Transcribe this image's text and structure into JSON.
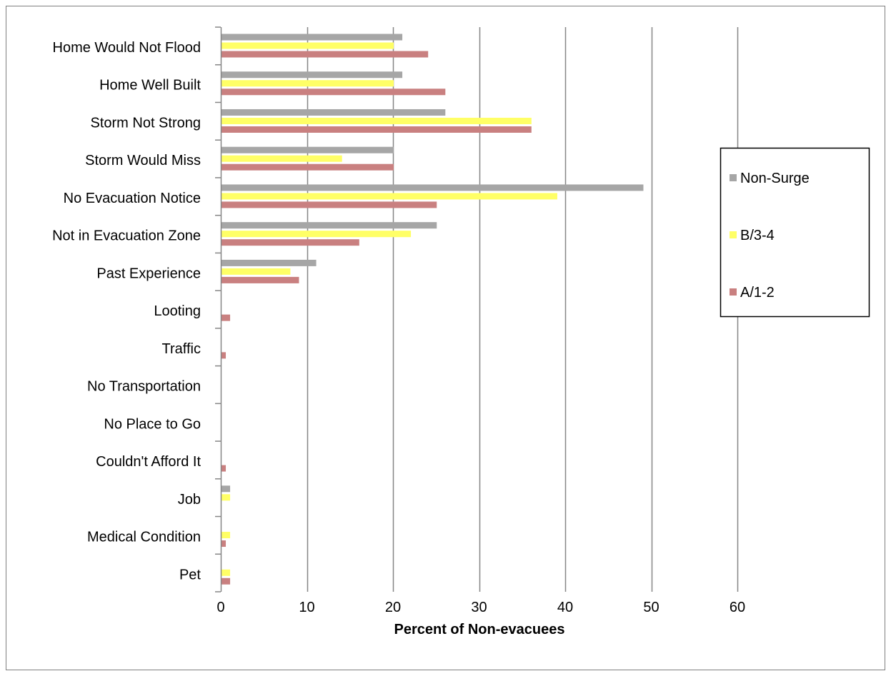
{
  "chart_data": {
    "type": "bar",
    "orientation": "horizontal",
    "categories": [
      "Home Would Not Flood",
      "Home Well Built",
      "Storm Not Strong",
      "Storm Would Miss",
      "No Evacuation Notice",
      "Not in Evacuation Zone",
      "Past Experience",
      "Looting",
      "Traffic",
      "No Transportation",
      "No Place to Go",
      "Couldn't Afford It",
      "Job",
      "Medical Condition",
      "Pet"
    ],
    "series": [
      {
        "name": "Non-Surge",
        "color": "#a6a6a6",
        "values": [
          21,
          21,
          26,
          20,
          49,
          25,
          11,
          0,
          0,
          0,
          0,
          0,
          1,
          0,
          0
        ]
      },
      {
        "name": "B/3-4",
        "color": "#ffff66",
        "values": [
          20,
          20,
          36,
          14,
          39,
          22,
          8,
          0,
          0,
          0,
          0,
          0,
          1,
          1,
          1
        ]
      },
      {
        "name": "A/1-2",
        "color": "#c98080",
        "values": [
          24,
          26,
          36,
          20,
          25,
          16,
          9,
          1,
          0.5,
          0,
          0,
          0.5,
          0,
          0.5,
          1
        ]
      }
    ],
    "xlabel": "Percent of Non-evacuees",
    "xlim": [
      0,
      60
    ],
    "xticks": [
      0,
      10,
      20,
      30,
      40,
      50,
      60
    ],
    "grid": "vertical",
    "legend_position": "right"
  }
}
